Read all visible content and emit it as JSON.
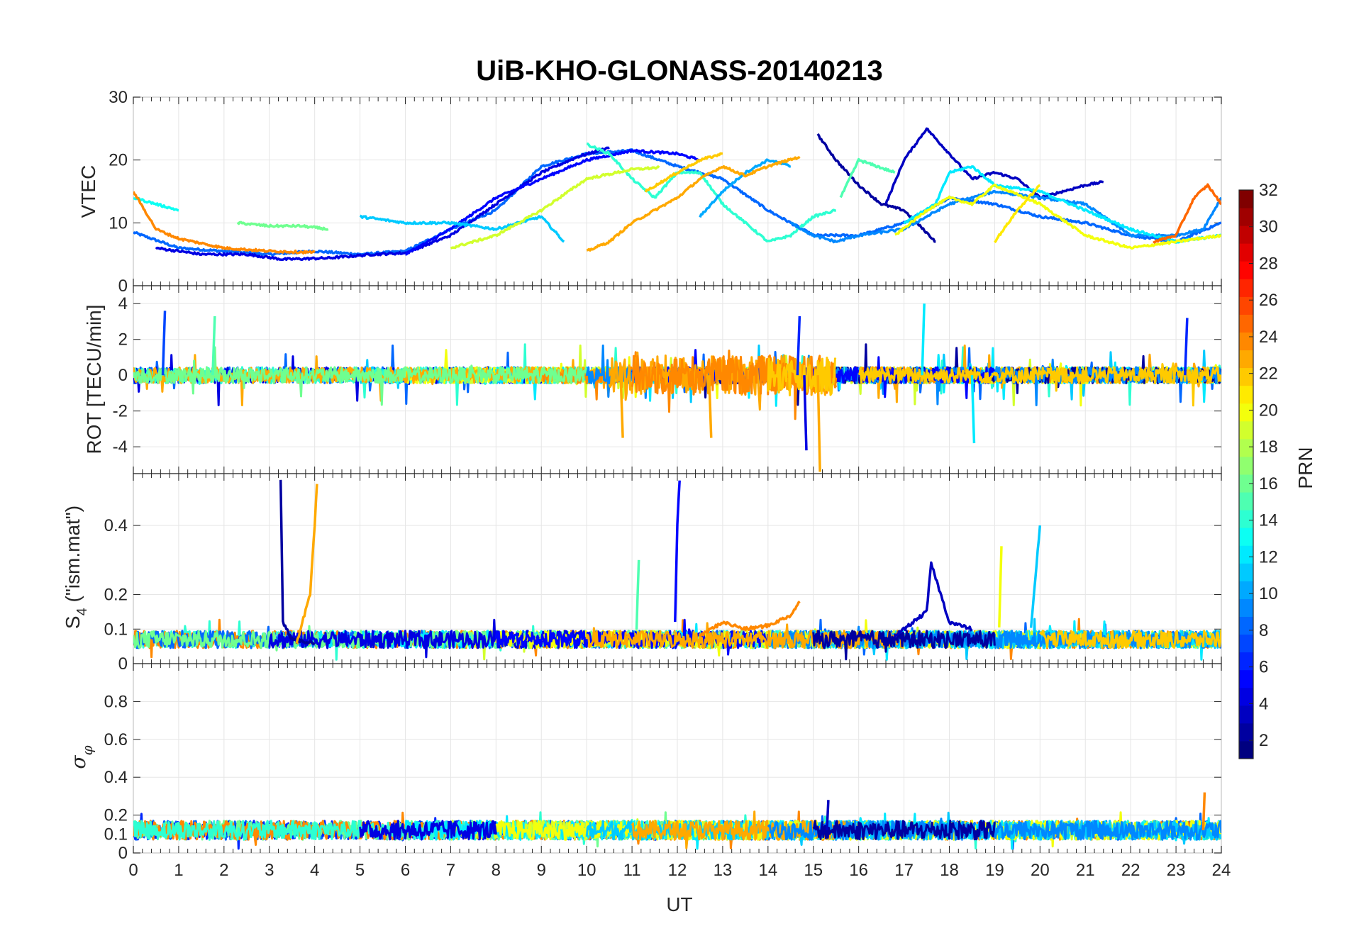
{
  "figure": {
    "title": "UiB-KHO-GLONASS-20140213",
    "xlabel": "UT",
    "colorbar_label": "PRN"
  },
  "chart_data": [
    {
      "type": "line",
      "panel": "vtec",
      "ylabel": "VTEC",
      "x_range": [
        0,
        24
      ],
      "ylim": [
        0,
        30
      ],
      "x_ticks": [
        0,
        1,
        2,
        3,
        4,
        5,
        6,
        7,
        8,
        9,
        10,
        11,
        12,
        13,
        14,
        15,
        16,
        17,
        18,
        19,
        20,
        21,
        22,
        23,
        24
      ],
      "y_ticks": [
        0,
        10,
        20,
        30
      ],
      "grid": true,
      "color_by": "PRN",
      "series": [
        {
          "prn": 8,
          "points": [
            [
              0,
              8.5
            ],
            [
              1,
              6
            ],
            [
              2,
              5.5
            ],
            [
              3,
              5
            ],
            [
              4,
              5.5
            ],
            [
              5,
              5
            ],
            [
              6,
              5.5
            ],
            [
              7,
              9
            ],
            [
              8,
              12
            ],
            [
              9,
              19
            ],
            [
              10,
              21
            ],
            [
              11,
              21.5
            ],
            [
              12,
              19
            ],
            [
              13,
              17
            ],
            [
              14,
              12
            ],
            [
              15,
              8
            ],
            [
              16,
              8
            ],
            [
              17,
              10
            ],
            [
              18,
              14
            ],
            [
              19,
              13
            ],
            [
              20,
              11
            ],
            [
              21,
              10
            ],
            [
              22,
              8
            ],
            [
              23,
              7
            ],
            [
              24,
              10
            ]
          ]
        },
        {
          "prn": 4,
          "points": [
            [
              0.5,
              6
            ],
            [
              1.5,
              5
            ],
            [
              2.5,
              5
            ],
            [
              3.3,
              4.2
            ],
            [
              4.3,
              4.4
            ],
            [
              5.3,
              5
            ],
            [
              6,
              5.2
            ],
            [
              7,
              8
            ],
            [
              8,
              13
            ],
            [
              9,
              18
            ],
            [
              9.8,
              20.5
            ],
            [
              10.5,
              22
            ]
          ]
        },
        {
          "prn": 5,
          "points": [
            [
              6,
              5
            ],
            [
              7,
              9
            ],
            [
              8,
              14
            ],
            [
              9,
              17
            ],
            [
              10,
              20
            ],
            [
              11,
              21.5
            ],
            [
              12,
              21
            ],
            [
              12.5,
              20
            ]
          ]
        },
        {
          "prn": 2,
          "points": [
            [
              15.1,
              24
            ],
            [
              15.5,
              20
            ],
            [
              16,
              16
            ],
            [
              16.5,
              13
            ],
            [
              17,
              12
            ],
            [
              17.7,
              7
            ]
          ]
        },
        {
          "prn": 3,
          "points": [
            [
              16.6,
              13
            ],
            [
              17,
              20
            ],
            [
              17.5,
              25
            ],
            [
              18,
              21
            ],
            [
              18.5,
              17
            ],
            [
              19,
              18
            ],
            [
              19.5,
              17
            ],
            [
              20,
              14
            ],
            [
              20.5,
              15
            ],
            [
              21,
              16
            ],
            [
              21.4,
              16.5
            ]
          ]
        },
        {
          "prn": 13,
          "points": [
            [
              0,
              14
            ],
            [
              0.5,
              13
            ],
            [
              1,
              12
            ]
          ]
        },
        {
          "prn": 11,
          "points": [
            [
              5,
              11
            ],
            [
              6,
              10
            ],
            [
              7,
              10
            ],
            [
              8,
              9
            ],
            [
              9,
              11
            ],
            [
              9.5,
              7
            ]
          ]
        },
        {
          "prn": 14,
          "points": [
            [
              10,
              22.5
            ],
            [
              10.5,
              21
            ],
            [
              11,
              17
            ],
            [
              11.5,
              14
            ],
            [
              12,
              18
            ],
            [
              12.5,
              18
            ],
            [
              13,
              13
            ],
            [
              13.5,
              10
            ],
            [
              14,
              7
            ],
            [
              14.5,
              8
            ],
            [
              15,
              11
            ],
            [
              15.5,
              12
            ]
          ]
        },
        {
          "prn": 16,
          "points": [
            [
              2.3,
              10
            ],
            [
              3,
              9.5
            ],
            [
              3.7,
              9.5
            ],
            [
              4.3,
              9
            ]
          ]
        },
        {
          "prn": 15,
          "points": [
            [
              15.6,
              14
            ],
            [
              16,
              20
            ],
            [
              16.8,
              18
            ]
          ]
        },
        {
          "prn": 9,
          "points": [
            [
              14.5,
              10
            ],
            [
              15,
              8
            ],
            [
              15.5,
              7
            ],
            [
              16,
              8
            ],
            [
              17,
              9
            ],
            [
              18,
              13
            ],
            [
              19,
              15
            ],
            [
              20,
              14
            ],
            [
              21,
              13
            ],
            [
              22,
              8
            ],
            [
              23,
              8
            ],
            [
              23.6,
              9
            ],
            [
              24,
              14
            ]
          ]
        },
        {
          "prn": 12,
          "points": [
            [
              17,
              10
            ],
            [
              17.7,
              13
            ],
            [
              18,
              18
            ],
            [
              18.5,
              19
            ],
            [
              19,
              16
            ],
            [
              20,
              15
            ],
            [
              21,
              12
            ],
            [
              22,
              9
            ],
            [
              23,
              7
            ],
            [
              24,
              8
            ]
          ]
        },
        {
          "prn": 10,
          "points": [
            [
              12.5,
              11
            ],
            [
              13,
              15
            ],
            [
              13.5,
              18
            ],
            [
              14,
              20
            ],
            [
              14.5,
              19
            ]
          ]
        },
        {
          "prn": 19,
          "points": [
            [
              7,
              6
            ],
            [
              8,
              8
            ],
            [
              9,
              12
            ],
            [
              10,
              17
            ],
            [
              11,
              18.5
            ],
            [
              11.6,
              18.8
            ]
          ]
        },
        {
          "prn": 20,
          "points": [
            [
              16.8,
              8
            ],
            [
              17.5,
              12
            ],
            [
              18,
              14
            ],
            [
              18.5,
              13
            ],
            [
              19,
              16
            ],
            [
              20,
              13
            ],
            [
              21,
              8
            ],
            [
              22,
              6
            ],
            [
              23,
              7
            ],
            [
              24,
              8
            ]
          ]
        },
        {
          "prn": 21,
          "points": [
            [
              19,
              7
            ],
            [
              19.5,
              12
            ],
            [
              20,
              16
            ]
          ]
        },
        {
          "prn": 24,
          "points": [
            [
              0,
              15
            ],
            [
              0.5,
              9
            ],
            [
              1,
              7.5
            ],
            [
              2,
              6
            ],
            [
              3,
              5.5
            ],
            [
              4,
              5.3
            ]
          ]
        },
        {
          "prn": 23,
          "points": [
            [
              10,
              5.5
            ],
            [
              10.5,
              7
            ],
            [
              11,
              10
            ],
            [
              12,
              14
            ],
            [
              12.5,
              17
            ],
            [
              13,
              19
            ],
            [
              13.5,
              17.5
            ],
            [
              14,
              19
            ],
            [
              14.7,
              20.5
            ]
          ]
        },
        {
          "prn": 22,
          "points": [
            [
              11.3,
              15
            ],
            [
              12,
              18
            ],
            [
              12.5,
              20
            ],
            [
              13,
              21
            ]
          ]
        },
        {
          "prn": 25,
          "points": [
            [
              22.5,
              7
            ],
            [
              23,
              8
            ],
            [
              23.4,
              14
            ],
            [
              23.7,
              16
            ],
            [
              24,
              13
            ]
          ]
        }
      ]
    },
    {
      "type": "line",
      "panel": "rot",
      "ylabel": "ROT [TECU/min]",
      "x_range": [
        0,
        24
      ],
      "ylim": [
        -5.5,
        5
      ],
      "x_ticks": [
        0,
        1,
        2,
        3,
        4,
        5,
        6,
        7,
        8,
        9,
        10,
        11,
        12,
        13,
        14,
        15,
        16,
        17,
        18,
        19,
        20,
        21,
        22,
        23,
        24
      ],
      "y_ticks": [
        -4,
        -2,
        0,
        2,
        4
      ],
      "grid": true,
      "color_by": "PRN",
      "annotations": "dense noisy ROT traces for all PRNs around 0; spikes reach about ±4 TECU/min near 15 UT",
      "spikes": [
        {
          "x": 0.65,
          "y": 3.6,
          "prn": 7
        },
        {
          "x": 1.75,
          "y": 3.3,
          "prn": 15
        },
        {
          "x": 14.65,
          "y": 3.3,
          "prn": 6
        },
        {
          "x": 14.8,
          "y": -4.2,
          "prn": 4
        },
        {
          "x": 15.1,
          "y": -5.4,
          "prn": 23
        },
        {
          "x": 17.4,
          "y": 4.0,
          "prn": 12
        },
        {
          "x": 18.5,
          "y": -3.8,
          "prn": 12
        },
        {
          "x": 12.7,
          "y": -3.5,
          "prn": 23
        },
        {
          "x": 10.75,
          "y": -3.5,
          "prn": 23
        },
        {
          "x": 23.2,
          "y": 3.2,
          "prn": 6
        }
      ]
    },
    {
      "type": "line",
      "panel": "s4",
      "ylabel": "S4 (\"ism.mat\")",
      "x_range": [
        0,
        24
      ],
      "ylim": [
        0,
        0.55
      ],
      "x_ticks": [
        0,
        1,
        2,
        3,
        4,
        5,
        6,
        7,
        8,
        9,
        10,
        11,
        12,
        13,
        14,
        15,
        16,
        17,
        18,
        19,
        20,
        21,
        22,
        23,
        24
      ],
      "y_ticks": [
        0,
        0.1,
        0.2,
        0.4
      ],
      "grid": true,
      "color_by": "PRN",
      "series": [
        {
          "prn": 2,
          "points": [
            [
              3.25,
              0.53
            ],
            [
              3.3,
              0.12
            ],
            [
              3.5,
              0.07
            ],
            [
              4,
              0.06
            ]
          ]
        },
        {
          "prn": 23,
          "points": [
            [
              3.6,
              0.06
            ],
            [
              3.9,
              0.2
            ],
            [
              4.0,
              0.4
            ],
            [
              4.05,
              0.52
            ]
          ]
        },
        {
          "prn": 5,
          "points": [
            [
              11.95,
              0.12
            ],
            [
              12.0,
              0.4
            ],
            [
              12.05,
              0.53
            ]
          ]
        },
        {
          "prn": 15,
          "points": [
            [
              11.1,
              0.1
            ],
            [
              11.15,
              0.3
            ]
          ]
        },
        {
          "prn": 20,
          "points": [
            [
              19.1,
              0.1
            ],
            [
              19.15,
              0.34
            ]
          ]
        },
        {
          "prn": 11,
          "points": [
            [
              19.8,
              0.1
            ],
            [
              20.0,
              0.4
            ]
          ]
        },
        {
          "prn": 3,
          "points": [
            [
              16.8,
              0.08
            ],
            [
              17.5,
              0.15
            ],
            [
              17.6,
              0.29
            ],
            [
              18,
              0.12
            ],
            [
              18.5,
              0.1
            ]
          ]
        },
        {
          "prn": 24,
          "points": [
            [
              12.5,
              0.08
            ],
            [
              13,
              0.12
            ],
            [
              13.5,
              0.1
            ],
            [
              14,
              0.11
            ],
            [
              14.5,
              0.14
            ],
            [
              14.7,
              0.18
            ]
          ]
        }
      ],
      "baseline_range": [
        0.03,
        0.12
      ]
    },
    {
      "type": "line",
      "panel": "sigma_phi",
      "ylabel": "σφ",
      "x_range": [
        0,
        24
      ],
      "ylim": [
        0,
        1
      ],
      "x_ticks": [
        0,
        1,
        2,
        3,
        4,
        5,
        6,
        7,
        8,
        9,
        10,
        11,
        12,
        13,
        14,
        15,
        16,
        17,
        18,
        19,
        20,
        21,
        22,
        23,
        24
      ],
      "x_tick_labels": [
        "0",
        "1",
        "2",
        "3",
        "4",
        "5",
        "6",
        "7",
        "8",
        "9",
        "10",
        "11",
        "12",
        "13",
        "14",
        "15",
        "16",
        "17",
        "18",
        "19",
        "20",
        "21",
        "22",
        "23",
        "24"
      ],
      "y_ticks": [
        0,
        0.1,
        0.2,
        0.4,
        0.6,
        0.8
      ],
      "grid": true,
      "color_by": "PRN",
      "baseline_range": [
        0.05,
        0.25
      ],
      "peaks": [
        {
          "x": 23.6,
          "y": 0.32,
          "prn": 24
        },
        {
          "x": 15.3,
          "y": 0.28,
          "prn": 3
        }
      ]
    }
  ],
  "colorbar": {
    "label": "PRN",
    "range": [
      1,
      32
    ],
    "ticks": [
      2,
      4,
      6,
      8,
      10,
      12,
      14,
      16,
      18,
      20,
      22,
      24,
      26,
      28,
      30,
      32
    ],
    "colormap": "jet"
  }
}
